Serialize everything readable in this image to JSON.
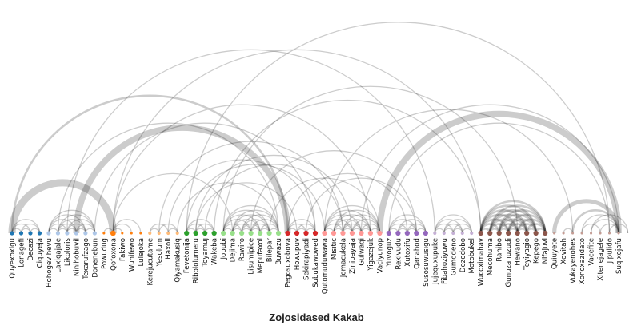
{
  "title": "Zojosidased Kakab",
  "nodes": [
    {
      "label": "Quyexoxigu",
      "color": "#1f77b4",
      "size": 1
    },
    {
      "label": "Lonagefi",
      "color": "#1f77b4",
      "size": 1
    },
    {
      "label": "Decazi",
      "color": "#1f77b4",
      "size": 1
    },
    {
      "label": "Ciquyeja",
      "color": "#1f77b4",
      "size": 1
    },
    {
      "label": "Hohogevihevu",
      "color": "#aec7e8",
      "size": 1
    },
    {
      "label": "Laxiqajale",
      "color": "#aec7e8",
      "size": 1
    },
    {
      "label": "Likoloris",
      "color": "#aec7e8",
      "size": 1
    },
    {
      "label": "Ninihobuvil",
      "color": "#aec7e8",
      "size": 1
    },
    {
      "label": "Texarufzago",
      "color": "#aec7e8",
      "size": 1
    },
    {
      "label": "Donenebun",
      "color": "#aec7e8",
      "size": 1
    },
    {
      "label": "Powudug",
      "color": "#ff7f0e",
      "size": 0.6
    },
    {
      "label": "Qofoxona",
      "color": "#ff7f0e",
      "size": 1.3
    },
    {
      "label": "Fakiwo",
      "color": "#ff7f0e",
      "size": 0.6
    },
    {
      "label": "Wuhifewo",
      "color": "#ff7f0e",
      "size": 0.6
    },
    {
      "label": "Lulejoka",
      "color": "#ff7f0e",
      "size": 0.6
    },
    {
      "label": "Kerejucutame",
      "color": "#ffbb78",
      "size": 0.8
    },
    {
      "label": "Yesolum",
      "color": "#ffbb78",
      "size": 0.8
    },
    {
      "label": "Haxoli",
      "color": "#ffbb78",
      "size": 0.8
    },
    {
      "label": "Qiyamakusiq",
      "color": "#ffbb78",
      "size": 0.8
    },
    {
      "label": "Fevetonija",
      "color": "#2ca02c",
      "size": 1.2
    },
    {
      "label": "Ribololumeru",
      "color": "#2ca02c",
      "size": 1.2
    },
    {
      "label": "Toyamuj",
      "color": "#2ca02c",
      "size": 1.2
    },
    {
      "label": "Wakeba",
      "color": "#2ca02c",
      "size": 1.2
    },
    {
      "label": "Jopubi",
      "color": "#98df8a",
      "size": 1.2
    },
    {
      "label": "Dejima",
      "color": "#98df8a",
      "size": 1.2
    },
    {
      "label": "Rawiro",
      "color": "#98df8a",
      "size": 1.2
    },
    {
      "label": "Lisumipice",
      "color": "#98df8a",
      "size": 1.2
    },
    {
      "label": "Mepufaxol",
      "color": "#98df8a",
      "size": 1.2
    },
    {
      "label": "Bilepar",
      "color": "#98df8a",
      "size": 1.2
    },
    {
      "label": "Buwazu",
      "color": "#98df8a",
      "size": 1.2
    },
    {
      "label": "Pegosuxobova",
      "color": "#d62728",
      "size": 1.2
    },
    {
      "label": "Howupuv",
      "color": "#d62728",
      "size": 1.2
    },
    {
      "label": "Sekirapiyadi",
      "color": "#d62728",
      "size": 1.2
    },
    {
      "label": "Subukawowed",
      "color": "#d62728",
      "size": 1.2
    },
    {
      "label": "Qutomuduwawa",
      "color": "#ff9896",
      "size": 1.2
    },
    {
      "label": "Misitic",
      "color": "#ff9896",
      "size": 1.2
    },
    {
      "label": "Jomacukela",
      "color": "#ff9896",
      "size": 1.2
    },
    {
      "label": "Zinipayaja",
      "color": "#ff9896",
      "size": 1.2
    },
    {
      "label": "Gulwaqi",
      "color": "#ff9896",
      "size": 1.2
    },
    {
      "label": "Yigazejuk",
      "color": "#ff9896",
      "size": 1.2
    },
    {
      "label": "Vaciyunop",
      "color": "#ff9896",
      "size": 1.2
    },
    {
      "label": "Yuvoguz",
      "color": "#9467bd",
      "size": 1.2
    },
    {
      "label": "Rexivudu",
      "color": "#9467bd",
      "size": 1.2
    },
    {
      "label": "Xutoxifu",
      "color": "#9467bd",
      "size": 1.2
    },
    {
      "label": "Qanahod",
      "color": "#9467bd",
      "size": 1.2
    },
    {
      "label": "Susosuwusigu",
      "color": "#9467bd",
      "size": 1.2
    },
    {
      "label": "Jujequxupuke",
      "color": "#c5b0d5",
      "size": 0.8
    },
    {
      "label": "Fibahoziyuwu",
      "color": "#c5b0d5",
      "size": 0.8
    },
    {
      "label": "Gumodeno",
      "color": "#c5b0d5",
      "size": 0.8
    },
    {
      "label": "Dezodobo",
      "color": "#c5b0d5",
      "size": 0.8
    },
    {
      "label": "Motobukel",
      "color": "#c5b0d5",
      "size": 0.8
    },
    {
      "label": "Wucoximahav",
      "color": "#8c564b",
      "size": 1.2
    },
    {
      "label": "Mecohuma",
      "color": "#8c564b",
      "size": 1.2
    },
    {
      "label": "Rahibo",
      "color": "#8c564b",
      "size": 1.2
    },
    {
      "label": "Gunuzanuzudi",
      "color": "#8c564b",
      "size": 1.2
    },
    {
      "label": "Hewano",
      "color": "#8c564b",
      "size": 1.2
    },
    {
      "label": "Teyiyagio",
      "color": "#8c564b",
      "size": 1.2
    },
    {
      "label": "Kepego",
      "color": "#8c564b",
      "size": 1.2
    },
    {
      "label": "Nifajuvi",
      "color": "#8c564b",
      "size": 1.2
    },
    {
      "label": "Quiuyete",
      "color": "#c49c94",
      "size": 0.6
    },
    {
      "label": "Xovitah",
      "color": "#c49c94",
      "size": 0.6
    },
    {
      "label": "Vukayenohes",
      "color": "#c49c94",
      "size": 0.6
    },
    {
      "label": "Xonoxazidato",
      "color": "#c49c94",
      "size": 0.6
    },
    {
      "label": "Vacefite",
      "color": "#c49c94",
      "size": 0.6
    },
    {
      "label": "Xitenejagele",
      "color": "#c49c94",
      "size": 0.6
    },
    {
      "label": "Jipulido",
      "color": "#c49c94",
      "size": 0.6
    },
    {
      "label": "Suqixojafu",
      "color": "#c49c94",
      "size": 0.6
    }
  ],
  "links": [
    {
      "source": 0,
      "target": 1,
      "weight": 1
    },
    {
      "source": 0,
      "target": 2,
      "weight": 1
    },
    {
      "source": 0,
      "target": 3,
      "weight": 1
    },
    {
      "source": 1,
      "target": 2,
      "weight": 1
    },
    {
      "source": 1,
      "target": 3,
      "weight": 1
    },
    {
      "source": 2,
      "target": 3,
      "weight": 1
    },
    {
      "source": 0,
      "target": 11,
      "weight": 7
    },
    {
      "source": 0,
      "target": 30,
      "weight": 2
    },
    {
      "source": 4,
      "target": 5,
      "weight": 1
    },
    {
      "source": 4,
      "target": 6,
      "weight": 1
    },
    {
      "source": 4,
      "target": 7,
      "weight": 1
    },
    {
      "source": 4,
      "target": 8,
      "weight": 1
    },
    {
      "source": 4,
      "target": 9,
      "weight": 1
    },
    {
      "source": 5,
      "target": 6,
      "weight": 1
    },
    {
      "source": 5,
      "target": 7,
      "weight": 1
    },
    {
      "source": 5,
      "target": 8,
      "weight": 1
    },
    {
      "source": 5,
      "target": 9,
      "weight": 1
    },
    {
      "source": 6,
      "target": 7,
      "weight": 1
    },
    {
      "source": 6,
      "target": 8,
      "weight": 1
    },
    {
      "source": 6,
      "target": 9,
      "weight": 1
    },
    {
      "source": 7,
      "target": 8,
      "weight": 1
    },
    {
      "source": 7,
      "target": 9,
      "weight": 1
    },
    {
      "source": 8,
      "target": 9,
      "weight": 1
    },
    {
      "source": 5,
      "target": 29,
      "weight": 1
    },
    {
      "source": 6,
      "target": 46,
      "weight": 1
    },
    {
      "source": 7,
      "target": 30,
      "weight": 6
    },
    {
      "source": 9,
      "target": 33,
      "weight": 1
    },
    {
      "source": 10,
      "target": 11,
      "weight": 1
    },
    {
      "source": 11,
      "target": 12,
      "weight": 1
    },
    {
      "source": 11,
      "target": 13,
      "weight": 1
    },
    {
      "source": 11,
      "target": 14,
      "weight": 1
    },
    {
      "source": 11,
      "target": 51,
      "weight": 1
    },
    {
      "source": 11,
      "target": 39,
      "weight": 1
    },
    {
      "source": 11,
      "target": 24,
      "weight": 1
    },
    {
      "source": 15,
      "target": 16,
      "weight": 1
    },
    {
      "source": 15,
      "target": 17,
      "weight": 1
    },
    {
      "source": 16,
      "target": 18,
      "weight": 1
    },
    {
      "source": 17,
      "target": 18,
      "weight": 1
    },
    {
      "source": 16,
      "target": 36,
      "weight": 1
    },
    {
      "source": 18,
      "target": 29,
      "weight": 1
    },
    {
      "source": 17,
      "target": 33,
      "weight": 1
    },
    {
      "source": 19,
      "target": 20,
      "weight": 1
    },
    {
      "source": 19,
      "target": 21,
      "weight": 1
    },
    {
      "source": 19,
      "target": 22,
      "weight": 1
    },
    {
      "source": 20,
      "target": 21,
      "weight": 1
    },
    {
      "source": 20,
      "target": 22,
      "weight": 1
    },
    {
      "source": 21,
      "target": 22,
      "weight": 1
    },
    {
      "source": 19,
      "target": 65,
      "weight": 1
    },
    {
      "source": 20,
      "target": 37,
      "weight": 1
    },
    {
      "source": 21,
      "target": 36,
      "weight": 1
    },
    {
      "source": 22,
      "target": 51,
      "weight": 1
    },
    {
      "source": 19,
      "target": 34,
      "weight": 1
    },
    {
      "source": 20,
      "target": 31,
      "weight": 1
    },
    {
      "source": 23,
      "target": 24,
      "weight": 1
    },
    {
      "source": 23,
      "target": 25,
      "weight": 1
    },
    {
      "source": 23,
      "target": 26,
      "weight": 1
    },
    {
      "source": 23,
      "target": 27,
      "weight": 1
    },
    {
      "source": 23,
      "target": 28,
      "weight": 1
    },
    {
      "source": 23,
      "target": 29,
      "weight": 1
    },
    {
      "source": 24,
      "target": 25,
      "weight": 1
    },
    {
      "source": 24,
      "target": 26,
      "weight": 1
    },
    {
      "source": 24,
      "target": 27,
      "weight": 1
    },
    {
      "source": 24,
      "target": 28,
      "weight": 1
    },
    {
      "source": 24,
      "target": 29,
      "weight": 1
    },
    {
      "source": 25,
      "target": 26,
      "weight": 1
    },
    {
      "source": 25,
      "target": 27,
      "weight": 1
    },
    {
      "source": 25,
      "target": 28,
      "weight": 1
    },
    {
      "source": 25,
      "target": 29,
      "weight": 1
    },
    {
      "source": 26,
      "target": 27,
      "weight": 1
    },
    {
      "source": 26,
      "target": 28,
      "weight": 1
    },
    {
      "source": 26,
      "target": 29,
      "weight": 1
    },
    {
      "source": 27,
      "target": 28,
      "weight": 1
    },
    {
      "source": 27,
      "target": 29,
      "weight": 1
    },
    {
      "source": 28,
      "target": 29,
      "weight": 1
    },
    {
      "source": 23,
      "target": 55,
      "weight": 1
    },
    {
      "source": 26,
      "target": 44,
      "weight": 1
    },
    {
      "source": 28,
      "target": 40,
      "weight": 1
    },
    {
      "source": 30,
      "target": 31,
      "weight": 1
    },
    {
      "source": 30,
      "target": 32,
      "weight": 1
    },
    {
      "source": 30,
      "target": 33,
      "weight": 1
    },
    {
      "source": 31,
      "target": 32,
      "weight": 1
    },
    {
      "source": 31,
      "target": 33,
      "weight": 1
    },
    {
      "source": 32,
      "target": 33,
      "weight": 1
    },
    {
      "source": 30,
      "target": 43,
      "weight": 1
    },
    {
      "source": 32,
      "target": 44,
      "weight": 1
    },
    {
      "source": 34,
      "target": 35,
      "weight": 1
    },
    {
      "source": 34,
      "target": 36,
      "weight": 1
    },
    {
      "source": 34,
      "target": 37,
      "weight": 1
    },
    {
      "source": 34,
      "target": 38,
      "weight": 1
    },
    {
      "source": 34,
      "target": 39,
      "weight": 1
    },
    {
      "source": 34,
      "target": 40,
      "weight": 1
    },
    {
      "source": 35,
      "target": 36,
      "weight": 1
    },
    {
      "source": 35,
      "target": 37,
      "weight": 1
    },
    {
      "source": 35,
      "target": 38,
      "weight": 1
    },
    {
      "source": 35,
      "target": 39,
      "weight": 1
    },
    {
      "source": 35,
      "target": 40,
      "weight": 1
    },
    {
      "source": 36,
      "target": 37,
      "weight": 1
    },
    {
      "source": 36,
      "target": 38,
      "weight": 1
    },
    {
      "source": 36,
      "target": 39,
      "weight": 1
    },
    {
      "source": 36,
      "target": 40,
      "weight": 1
    },
    {
      "source": 37,
      "target": 38,
      "weight": 1
    },
    {
      "source": 37,
      "target": 39,
      "weight": 1
    },
    {
      "source": 37,
      "target": 40,
      "weight": 1
    },
    {
      "source": 38,
      "target": 39,
      "weight": 1
    },
    {
      "source": 38,
      "target": 40,
      "weight": 1
    },
    {
      "source": 39,
      "target": 40,
      "weight": 1
    },
    {
      "source": 38,
      "target": 66,
      "weight": 1
    },
    {
      "source": 34,
      "target": 61,
      "weight": 1
    },
    {
      "source": 41,
      "target": 42,
      "weight": 1
    },
    {
      "source": 41,
      "target": 43,
      "weight": 1
    },
    {
      "source": 41,
      "target": 44,
      "weight": 1
    },
    {
      "source": 41,
      "target": 45,
      "weight": 1
    },
    {
      "source": 42,
      "target": 43,
      "weight": 1
    },
    {
      "source": 42,
      "target": 44,
      "weight": 1
    },
    {
      "source": 42,
      "target": 45,
      "weight": 1
    },
    {
      "source": 43,
      "target": 44,
      "weight": 1
    },
    {
      "source": 43,
      "target": 45,
      "weight": 1
    },
    {
      "source": 44,
      "target": 45,
      "weight": 1
    },
    {
      "source": 40,
      "target": 66,
      "weight": 6
    },
    {
      "source": 41,
      "target": 65,
      "weight": 1
    },
    {
      "source": 46,
      "target": 47,
      "weight": 1
    },
    {
      "source": 46,
      "target": 48,
      "weight": 1
    },
    {
      "source": 46,
      "target": 49,
      "weight": 1
    },
    {
      "source": 46,
      "target": 50,
      "weight": 1
    },
    {
      "source": 47,
      "target": 48,
      "weight": 1
    },
    {
      "source": 47,
      "target": 49,
      "weight": 1
    },
    {
      "source": 47,
      "target": 50,
      "weight": 1
    },
    {
      "source": 48,
      "target": 49,
      "weight": 1
    },
    {
      "source": 48,
      "target": 50,
      "weight": 1
    },
    {
      "source": 49,
      "target": 50,
      "weight": 1
    },
    {
      "source": 51,
      "target": 52,
      "weight": 2
    },
    {
      "source": 51,
      "target": 53,
      "weight": 2
    },
    {
      "source": 51,
      "target": 54,
      "weight": 2
    },
    {
      "source": 51,
      "target": 55,
      "weight": 2
    },
    {
      "source": 51,
      "target": 56,
      "weight": 2
    },
    {
      "source": 51,
      "target": 57,
      "weight": 2
    },
    {
      "source": 51,
      "target": 58,
      "weight": 2
    },
    {
      "source": 52,
      "target": 53,
      "weight": 2
    },
    {
      "source": 52,
      "target": 54,
      "weight": 2
    },
    {
      "source": 52,
      "target": 55,
      "weight": 2
    },
    {
      "source": 52,
      "target": 56,
      "weight": 2
    },
    {
      "source": 52,
      "target": 57,
      "weight": 2
    },
    {
      "source": 52,
      "target": 58,
      "weight": 2
    },
    {
      "source": 53,
      "target": 54,
      "weight": 2
    },
    {
      "source": 53,
      "target": 55,
      "weight": 2
    },
    {
      "source": 53,
      "target": 56,
      "weight": 2
    },
    {
      "source": 53,
      "target": 57,
      "weight": 2
    },
    {
      "source": 53,
      "target": 58,
      "weight": 2
    },
    {
      "source": 54,
      "target": 55,
      "weight": 2
    },
    {
      "source": 54,
      "target": 56,
      "weight": 2
    },
    {
      "source": 54,
      "target": 57,
      "weight": 2
    },
    {
      "source": 54,
      "target": 58,
      "weight": 2
    },
    {
      "source": 55,
      "target": 56,
      "weight": 2
    },
    {
      "source": 55,
      "target": 57,
      "weight": 2
    },
    {
      "source": 55,
      "target": 58,
      "weight": 2
    },
    {
      "source": 56,
      "target": 57,
      "weight": 2
    },
    {
      "source": 56,
      "target": 58,
      "weight": 2
    },
    {
      "source": 57,
      "target": 58,
      "weight": 2
    },
    {
      "source": 59,
      "target": 66,
      "weight": 4
    },
    {
      "source": 61,
      "target": 66,
      "weight": 2
    },
    {
      "source": 62,
      "target": 66,
      "weight": 1
    },
    {
      "source": 63,
      "target": 66,
      "weight": 1
    },
    {
      "source": 64,
      "target": 66,
      "weight": 1
    },
    {
      "source": 60,
      "target": 61,
      "weight": 1
    },
    {
      "source": 62,
      "target": 64,
      "weight": 1
    },
    {
      "source": 65,
      "target": 67,
      "weight": 1
    },
    {
      "source": 63,
      "target": 67,
      "weight": 1
    }
  ]
}
